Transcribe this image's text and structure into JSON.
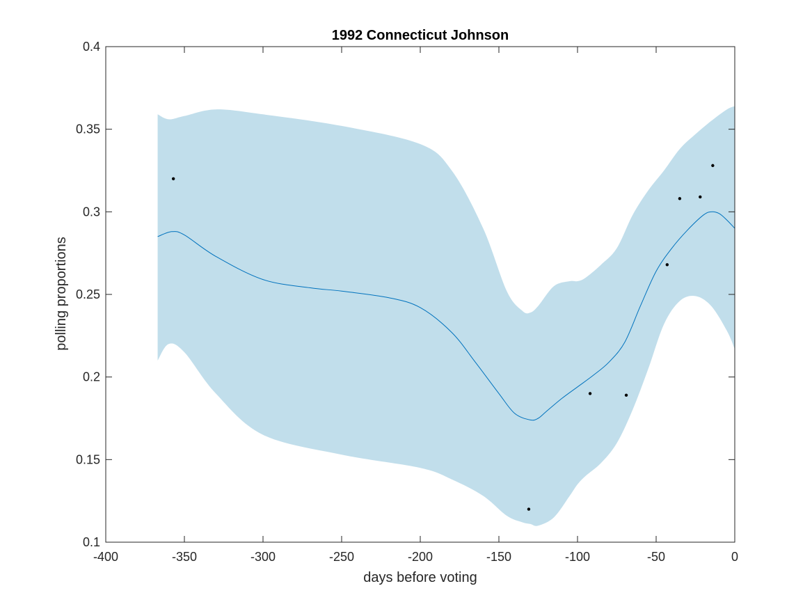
{
  "chart_data": {
    "type": "line",
    "title": "1992 Connecticut Johnson",
    "xlabel": "days before voting",
    "ylabel": "polling proportions",
    "xlim": [
      -400,
      0
    ],
    "ylim": [
      0.1,
      0.4
    ],
    "xticks": [
      -400,
      -350,
      -300,
      -250,
      -200,
      -150,
      -100,
      -50,
      0
    ],
    "yticks": [
      0.1,
      0.15,
      0.2,
      0.25,
      0.3,
      0.35,
      0.4
    ],
    "xtick_labels": [
      "-400",
      "-350",
      "-300",
      "-250",
      "-200",
      "-150",
      "-100",
      "-50",
      "0"
    ],
    "ytick_labels": [
      "0.1",
      "0.15",
      "0.2",
      "0.25",
      "0.3",
      "0.35",
      "0.4"
    ],
    "grid": false,
    "colors": {
      "band": "#c1deeb",
      "line": "#0072bd",
      "points": "#000000",
      "axes": "#262626"
    },
    "band": {
      "x": [
        -367,
        -360,
        -350,
        -330,
        -300,
        -250,
        -200,
        -180,
        -160,
        -145,
        -135,
        -130,
        -125,
        -115,
        -105,
        -100,
        -95,
        -85,
        -75,
        -65,
        -55,
        -45,
        -35,
        -25,
        -15,
        -5,
        0
      ],
      "upper": [
        0.359,
        0.356,
        0.358,
        0.362,
        0.359,
        0.352,
        0.341,
        0.325,
        0.29,
        0.252,
        0.24,
        0.239,
        0.243,
        0.255,
        0.258,
        0.258,
        0.26,
        0.268,
        0.278,
        0.298,
        0.313,
        0.325,
        0.338,
        0.347,
        0.355,
        0.362,
        0.364
      ],
      "lower": [
        0.21,
        0.22,
        0.215,
        0.19,
        0.165,
        0.153,
        0.145,
        0.138,
        0.128,
        0.116,
        0.112,
        0.111,
        0.11,
        0.115,
        0.128,
        0.135,
        0.14,
        0.148,
        0.16,
        0.18,
        0.205,
        0.232,
        0.246,
        0.249,
        0.243,
        0.228,
        0.217
      ]
    },
    "series": [
      {
        "x": [
          -367,
          -358,
          -350,
          -330,
          -300,
          -270,
          -250,
          -220,
          -200,
          -180,
          -165,
          -150,
          -140,
          -130,
          -125,
          -120,
          -110,
          -100,
          -90,
          -80,
          -70,
          -60,
          -50,
          -40,
          -30,
          -20,
          -15,
          -10,
          -5,
          0
        ],
        "y": [
          0.285,
          0.288,
          0.286,
          0.273,
          0.259,
          0.254,
          0.252,
          0.248,
          0.242,
          0.227,
          0.209,
          0.19,
          0.178,
          0.174,
          0.175,
          0.179,
          0.187,
          0.194,
          0.201,
          0.209,
          0.221,
          0.243,
          0.264,
          0.278,
          0.289,
          0.298,
          0.3,
          0.299,
          0.295,
          0.29
        ]
      }
    ],
    "points": {
      "x": [
        -357,
        -131,
        -92,
        -69,
        -43,
        -35,
        -22,
        -14
      ],
      "y": [
        0.32,
        0.12,
        0.19,
        0.189,
        0.268,
        0.308,
        0.309,
        0.328
      ]
    }
  }
}
